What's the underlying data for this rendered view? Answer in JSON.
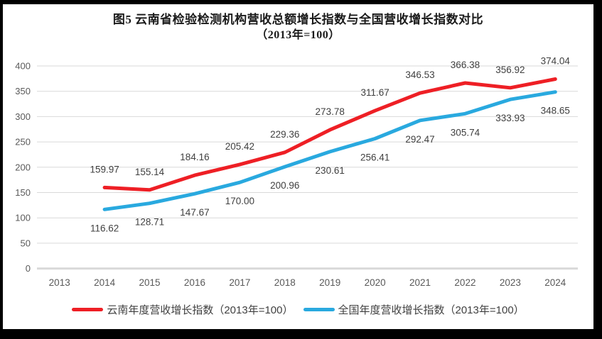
{
  "chart_data": {
    "type": "line",
    "title": "图5  云南省检验检测机构营收总额增长指数与全国营收增长指数对比",
    "subtitle": "（2013年=100）",
    "categories": [
      "2013",
      "2014",
      "2015",
      "2016",
      "2017",
      "2018",
      "2019",
      "2020",
      "2021",
      "2022",
      "2023",
      "2024"
    ],
    "series": [
      {
        "key": "yunnan",
        "name": "云南年度营收增长指数（2013年=100）",
        "color": "#EE1F25",
        "values": [
          null,
          159.97,
          155.14,
          184.16,
          205.42,
          229.36,
          273.78,
          311.67,
          346.53,
          366.38,
          356.92,
          374.04
        ]
      },
      {
        "key": "national",
        "name": "全国年度营收增长指数（2013年=100）",
        "color": "#29A9DF",
        "values": [
          null,
          116.62,
          128.71,
          147.67,
          170.0,
          200.96,
          230.61,
          256.41,
          292.47,
          305.74,
          333.93,
          348.65
        ]
      }
    ],
    "ylim": [
      0,
      400
    ],
    "ytick_step": 50,
    "grid": true,
    "data_labels": true,
    "label_decimals": 2,
    "legend_position": "bottom"
  },
  "style": {
    "grid_color": "#D9D9D9",
    "axis_line_color": "#D9D9D9",
    "tick_label_color": "#595959",
    "data_label_color": "#404040",
    "background": "#ffffff",
    "frame_color": "#000000"
  }
}
